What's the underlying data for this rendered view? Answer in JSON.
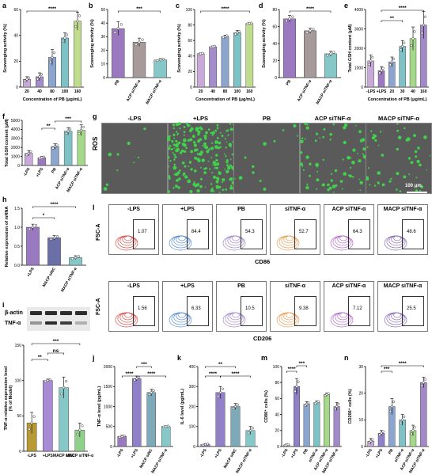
{
  "panels": {
    "a": {
      "label": "a",
      "ylabel": "Scavenging activity (%)",
      "xlabel": "Concentration of PB (μg/mL)",
      "categories": [
        "20",
        "40",
        "80",
        "100",
        "160"
      ],
      "values": [
        6,
        8,
        23,
        38,
        51
      ],
      "errors": [
        2,
        3,
        6,
        4,
        7
      ],
      "ylim": [
        0,
        60
      ],
      "yticks": [
        "0",
        "20",
        "40",
        "60"
      ],
      "colors": [
        "#c8a9d9",
        "#a58ccb",
        "#8ca5cf",
        "#7ec2c6",
        "#c0dc8f"
      ],
      "sig": "****"
    },
    "b": {
      "label": "b",
      "ylabel": "Scavenging activity (%)",
      "categories": [
        "PB",
        "ACP siTNF-α",
        "MACP siTNF-α"
      ],
      "values": [
        36,
        26,
        13
      ],
      "errors": [
        5,
        3,
        1
      ],
      "ylim": [
        0,
        50
      ],
      "yticks": [
        "0",
        "10",
        "20",
        "30",
        "40",
        "50"
      ],
      "colors": [
        "#9a79c0",
        "#a79a9a",
        "#86c8c8"
      ],
      "sig": "***"
    },
    "c": {
      "label": "c",
      "ylabel": "Scavenging activity (%)",
      "xlabel": "Concentration of PB (μg/mL)",
      "categories": [
        "20",
        "40",
        "80",
        "100",
        "160"
      ],
      "values": [
        43,
        52,
        65,
        70,
        82
      ],
      "errors": [
        1,
        1,
        2,
        3,
        1
      ],
      "ylim": [
        0,
        100
      ],
      "yticks": [
        "0",
        "20",
        "40",
        "60",
        "80",
        "100"
      ],
      "colors": [
        "#c8a9d9",
        "#a58ccb",
        "#8ca5cf",
        "#7ec2c6",
        "#c0dc8f"
      ],
      "sig": "****"
    },
    "d": {
      "label": "d",
      "ylabel": "Scavenging activity (%)",
      "categories": [
        "PB",
        "ACP siTNF-α",
        "MACP siTNF-α"
      ],
      "values": [
        69,
        55,
        28
      ],
      "errors": [
        4,
        3,
        3
      ],
      "ylim": [
        0,
        80
      ],
      "yticks": [
        "0",
        "20",
        "40",
        "60",
        "80"
      ],
      "colors": [
        "#9a79c0",
        "#a79a9a",
        "#86c8c8"
      ],
      "sig": "****"
    },
    "e": {
      "label": "e",
      "ylabel": "Total GSH content (μM)",
      "xlabel": "Concentration of PB (μg/mL)",
      "categories": [
        "-LPS",
        "+LPS",
        "20",
        "30",
        "40",
        "160"
      ],
      "values": [
        1350,
        850,
        1300,
        2100,
        2500,
        3200
      ],
      "errors": [
        300,
        200,
        250,
        300,
        600,
        700
      ],
      "ylim": [
        0,
        4000
      ],
      "yticks": [
        "0",
        "1000",
        "2000",
        "3000",
        "4000"
      ],
      "colors": [
        "#c8a9d9",
        "#9a79c0",
        "#8ca5cf",
        "#7ec2c6",
        "#a5d88a",
        "#a28ac8"
      ],
      "sig1": "**",
      "sig2": "****"
    },
    "f": {
      "label": "f",
      "ylabel": "Total GSH content (μM)",
      "categories": [
        "-LPS",
        "+LPS",
        "PB",
        "ACP siTNF-α",
        "MACP siTNF-α"
      ],
      "values": [
        1350,
        850,
        2100,
        3800,
        3900
      ],
      "errors": [
        300,
        150,
        300,
        400,
        600
      ],
      "ylim": [
        0,
        5000
      ],
      "yticks": [
        "0",
        "1000",
        "2000",
        "3000",
        "4000",
        "5000"
      ],
      "colors": [
        "#c8a9d9",
        "#9a79c0",
        "#8ca5cf",
        "#7ec2c6",
        "#a5d88a"
      ],
      "sig1": "**",
      "sig2": "***"
    },
    "g": {
      "label": "g",
      "rowlabel": "ROS",
      "groups": [
        "-LPS",
        "+LPS",
        "PB",
        "ACP siTNF-α",
        "MACP siTNF-α"
      ],
      "density": [
        0.04,
        1.0,
        0.06,
        0.3,
        0.22
      ],
      "scalebar": "100 μm"
    },
    "h": {
      "label": "h",
      "ylabel": "Relative expression of mRNA",
      "categories": [
        "+LPS",
        "MACP siNC",
        "MACP siTNF-α"
      ],
      "values": [
        1.0,
        0.72,
        0.2
      ],
      "errors": [
        0.08,
        0.06,
        0.05
      ],
      "ylim": [
        0,
        1.5
      ],
      "yticks": [
        "0.0",
        "0.5",
        "1.0",
        "1.5"
      ],
      "colors": [
        "#9a79c0",
        "#6b6fa8",
        "#86c8c8"
      ],
      "sig1": "*",
      "sig2": "****"
    },
    "i": {
      "label": "i",
      "blots": [
        "β-actin",
        "TNF-α"
      ],
      "ylabel": "TNF-α relative expression level\n(% of Model)",
      "categories": [
        "-LPS",
        "+LPS",
        "MACP siNC",
        "MACP siTNF-α"
      ],
      "values": [
        40,
        100,
        90,
        30
      ],
      "errors": [
        15,
        2,
        15,
        10
      ],
      "ylim": [
        0,
        150
      ],
      "yticks": [
        "0",
        "50",
        "100",
        "150"
      ],
      "colors": [
        "#b79a35",
        "#a98ad4",
        "#86c8c8",
        "#8fd08a"
      ],
      "sig1": "**",
      "sig2": "ns",
      "sig3": "***"
    },
    "j": {
      "label": "j",
      "ylabel": "TNF-α level (pg/mL)",
      "categories": [
        "-LPS",
        "+LPS",
        "MACP siNC",
        "MACP siTNF-α"
      ],
      "values": [
        250,
        1700,
        1350,
        500
      ],
      "errors": [
        30,
        60,
        80,
        20
      ],
      "ylim": [
        0,
        2000
      ],
      "yticks": [
        "0",
        "500",
        "1000",
        "1500",
        "2000"
      ],
      "colors": [
        "#9a79c0",
        "#9080c8",
        "#7ea9b9",
        "#86c8c8"
      ],
      "sig": [
        "****",
        "****",
        "***"
      ]
    },
    "k": {
      "label": "k",
      "ylabel": "IL-6 level (pg/mL)",
      "categories": [
        "-LPS",
        "+LPS",
        "MACP siNC",
        "MACP siTNF-α"
      ],
      "values": [
        10,
        270,
        200,
        80
      ],
      "errors": [
        5,
        30,
        15,
        20
      ],
      "ylim": [
        0,
        400
      ],
      "yticks": [
        "0",
        "100",
        "200",
        "300",
        "400"
      ],
      "colors": [
        "#9a79c0",
        "#9080c8",
        "#7ea9b9",
        "#86c8c8"
      ],
      "sig": [
        "****",
        "****",
        "**"
      ]
    },
    "l": {
      "label": "l",
      "ylabel": "FSC-A",
      "row1_xlabel": "CD86",
      "row2_xlabel": "CD206",
      "groups": [
        "-LPS",
        "+LPS",
        "PB",
        "siTNF-α",
        "ACP siTNF-α",
        "MACP siTNF-α"
      ],
      "row1_values": [
        "1.07",
        "84.4",
        "54.3",
        "52.7",
        "64.3",
        "48.6"
      ],
      "row2_values": [
        "1.56",
        "6.33",
        "10.5",
        "9.38",
        "7.12",
        "25.5"
      ],
      "colors": [
        "#d9534f",
        "#5b8fd6",
        "#a58ccb",
        "#e9a15a",
        "#b56fc8",
        "#8a6fb8"
      ]
    },
    "m": {
      "label": "m",
      "ylabel": "CD86⁺ cells (%)",
      "categories": [
        "-LPS",
        "+LPS",
        "PB",
        "siTNF-α",
        "ACP siTNF-α",
        "MACP siTNF-α"
      ],
      "values": [
        2,
        75,
        53,
        55,
        65,
        50
      ],
      "errors": [
        1,
        10,
        3,
        2,
        2,
        5
      ],
      "ylim": [
        0,
        100
      ],
      "yticks": [
        "0",
        "20",
        "40",
        "60",
        "80",
        "100"
      ],
      "colors": [
        "#c8a9d9",
        "#9080c8",
        "#8ca5cf",
        "#7ec2c6",
        "#a5d88a",
        "#a28ac8"
      ],
      "sig": [
        "****",
        "***"
      ]
    },
    "n": {
      "label": "n",
      "ylabel": "CD206⁺ cells (%)",
      "categories": [
        "-LPS",
        "+LPS",
        "PB",
        "siTNF-α",
        "ACP siTNF-α",
        "MACP siTNF-α"
      ],
      "values": [
        2,
        5,
        15,
        10,
        6,
        24
      ],
      "errors": [
        1,
        1,
        3,
        2,
        2,
        2
      ],
      "ylim": [
        0,
        30
      ],
      "yticks": [
        "0",
        "10",
        "20",
        "30"
      ],
      "colors": [
        "#c8a9d9",
        "#9080c8",
        "#8ca5cf",
        "#7ec2c6",
        "#a5d88a",
        "#a28ac8"
      ],
      "sig": [
        "***",
        "****"
      ]
    }
  },
  "chart_data": [
    {
      "type": "bar",
      "panel": "a",
      "categories": [
        "20",
        "40",
        "80",
        "100",
        "160"
      ],
      "values": [
        6,
        8,
        23,
        38,
        51
      ],
      "ylabel": "Scavenging activity (%)",
      "xlabel": "Concentration of PB (μg/mL)",
      "ylim": [
        0,
        60
      ]
    },
    {
      "type": "bar",
      "panel": "b",
      "categories": [
        "PB",
        "ACP siTNF-α",
        "MACP siTNF-α"
      ],
      "values": [
        36,
        26,
        13
      ],
      "ylabel": "Scavenging activity (%)",
      "ylim": [
        0,
        50
      ]
    },
    {
      "type": "bar",
      "panel": "c",
      "categories": [
        "20",
        "40",
        "80",
        "100",
        "160"
      ],
      "values": [
        43,
        52,
        65,
        70,
        82
      ],
      "ylabel": "Scavenging activity (%)",
      "xlabel": "Concentration of PB (μg/mL)",
      "ylim": [
        0,
        100
      ]
    },
    {
      "type": "bar",
      "panel": "d",
      "categories": [
        "PB",
        "ACP siTNF-α",
        "MACP siTNF-α"
      ],
      "values": [
        69,
        55,
        28
      ],
      "ylabel": "Scavenging activity (%)",
      "ylim": [
        0,
        80
      ]
    },
    {
      "type": "bar",
      "panel": "e",
      "categories": [
        "-LPS",
        "+LPS",
        "20",
        "30",
        "40",
        "160"
      ],
      "values": [
        1350,
        850,
        1300,
        2100,
        2500,
        3200
      ],
      "ylabel": "Total GSH content (μM)",
      "xlabel": "Concentration of PB (μg/mL)",
      "ylim": [
        0,
        4000
      ]
    },
    {
      "type": "bar",
      "panel": "f",
      "categories": [
        "-LPS",
        "+LPS",
        "PB",
        "ACP siTNF-α",
        "MACP siTNF-α"
      ],
      "values": [
        1350,
        850,
        2100,
        3800,
        3900
      ],
      "ylabel": "Total GSH content (μM)",
      "ylim": [
        0,
        5000
      ]
    },
    {
      "type": "bar",
      "panel": "h",
      "categories": [
        "+LPS",
        "MACP siNC",
        "MACP siTNF-α"
      ],
      "values": [
        1.0,
        0.72,
        0.2
      ],
      "ylabel": "Relative expression of mRNA",
      "ylim": [
        0,
        1.5
      ]
    },
    {
      "type": "bar",
      "panel": "i",
      "categories": [
        "-LPS",
        "+LPS",
        "MACP siNC",
        "MACP siTNF-α"
      ],
      "values": [
        40,
        100,
        90,
        30
      ],
      "ylabel": "TNF-α relative expression level (% of Model)",
      "ylim": [
        0,
        150
      ]
    },
    {
      "type": "bar",
      "panel": "j",
      "categories": [
        "-LPS",
        "+LPS",
        "MACP siNC",
        "MACP siTNF-α"
      ],
      "values": [
        250,
        1700,
        1350,
        500
      ],
      "ylabel": "TNF-α level (pg/mL)",
      "ylim": [
        0,
        2000
      ]
    },
    {
      "type": "bar",
      "panel": "k",
      "categories": [
        "-LPS",
        "+LPS",
        "MACP siNC",
        "MACP siTNF-α"
      ],
      "values": [
        10,
        270,
        200,
        80
      ],
      "ylabel": "IL-6 level (pg/mL)",
      "ylim": [
        0,
        400
      ]
    },
    {
      "type": "bar",
      "panel": "m",
      "categories": [
        "-LPS",
        "+LPS",
        "PB",
        "siTNF-α",
        "ACP siTNF-α",
        "MACP siTNF-α"
      ],
      "values": [
        2,
        75,
        53,
        55,
        65,
        50
      ],
      "ylabel": "CD86⁺ cells (%)",
      "ylim": [
        0,
        100
      ]
    },
    {
      "type": "bar",
      "panel": "n",
      "categories": [
        "-LPS",
        "+LPS",
        "PB",
        "siTNF-α",
        "ACP siTNF-α",
        "MACP siTNF-α"
      ],
      "values": [
        2,
        5,
        15,
        10,
        6,
        24
      ],
      "ylabel": "CD206⁺ cells (%)",
      "ylim": [
        0,
        30
      ]
    }
  ]
}
